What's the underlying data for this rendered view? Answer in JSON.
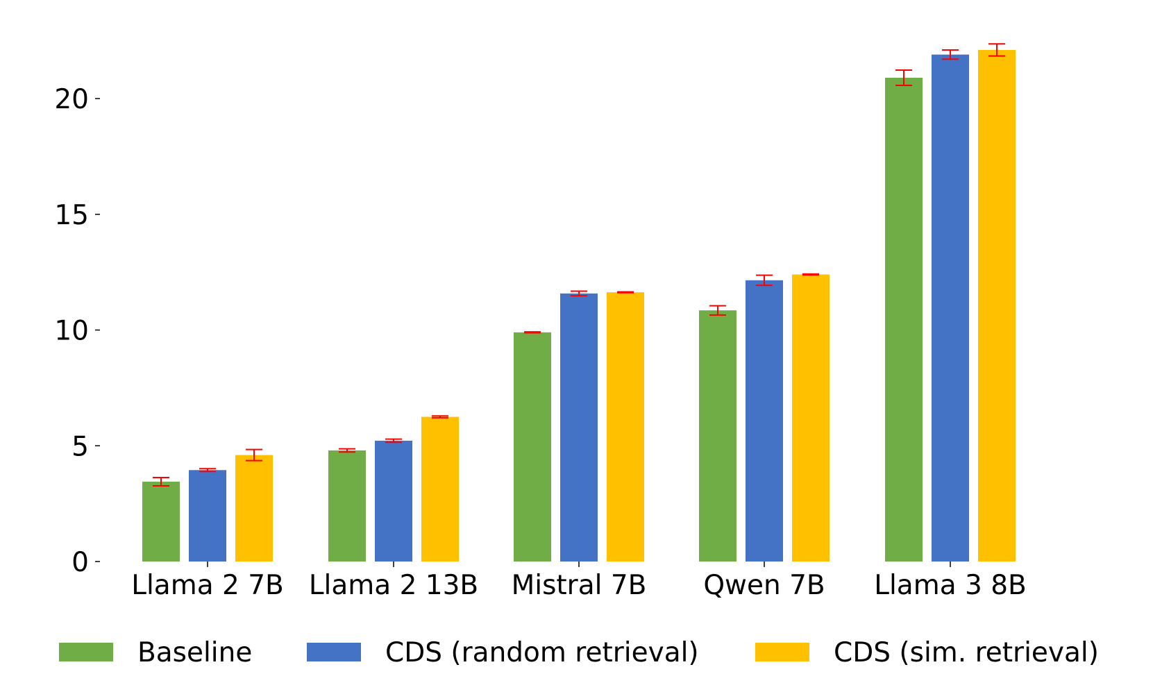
{
  "chart_data": {
    "type": "bar",
    "title": "",
    "xlabel": "",
    "ylabel": "",
    "ylim": [
      0,
      23
    ],
    "yticks": [
      0,
      5,
      10,
      15,
      20
    ],
    "categories": [
      "Llama 2 7B",
      "Llama 2 13B",
      "Mistral 7B",
      "Qwen 7B",
      "Llama 3 8B"
    ],
    "series": [
      {
        "name": "Baseline",
        "color": "#70ad47",
        "values": [
          3.45,
          4.8,
          9.9,
          10.85,
          20.9
        ],
        "errors": [
          0.18,
          0.07,
          0.02,
          0.2,
          0.33
        ]
      },
      {
        "name": "CDS (random retrieval)",
        "color": "#4472c4",
        "values": [
          3.95,
          5.22,
          11.58,
          12.15,
          21.9
        ],
        "errors": [
          0.06,
          0.07,
          0.1,
          0.22,
          0.2
        ]
      },
      {
        "name": "CDS (sim. retrieval)",
        "color": "#ffc000",
        "values": [
          4.6,
          6.25,
          11.63,
          12.4,
          22.1
        ],
        "errors": [
          0.24,
          0.04,
          0.02,
          0.02,
          0.26
        ]
      }
    ],
    "error_color": "#ff0000",
    "legend_position": "bottom"
  }
}
